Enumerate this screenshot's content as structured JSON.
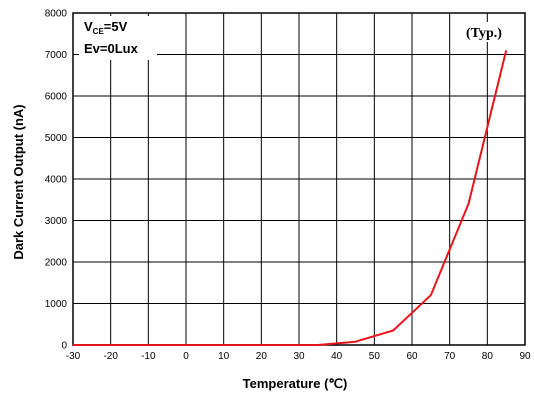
{
  "chart_data": {
    "type": "line",
    "title": "",
    "xlabel": "Temperature (℃)",
    "ylabel": "Dark Current Output (nA)",
    "xlim": [
      -30,
      90
    ],
    "ylim": [
      0,
      8000
    ],
    "x_ticks": [
      -30,
      -20,
      -10,
      0,
      10,
      20,
      30,
      40,
      50,
      60,
      70,
      80,
      90
    ],
    "y_ticks": [
      0,
      1000,
      2000,
      3000,
      4000,
      5000,
      6000,
      7000,
      8000
    ],
    "grid": true,
    "series": [
      {
        "color": "#e8141b",
        "x": [
          -30,
          0,
          35,
          45,
          55,
          65,
          75,
          85
        ],
        "y": [
          0,
          0,
          0,
          80,
          350,
          1200,
          3400,
          7100
        ]
      }
    ],
    "annotations": {
      "vce_main": "V",
      "vce_sub": "CE",
      "vce_value": "=5V",
      "ev": "Ev=0Lux",
      "typ": "(Typ.)"
    }
  }
}
